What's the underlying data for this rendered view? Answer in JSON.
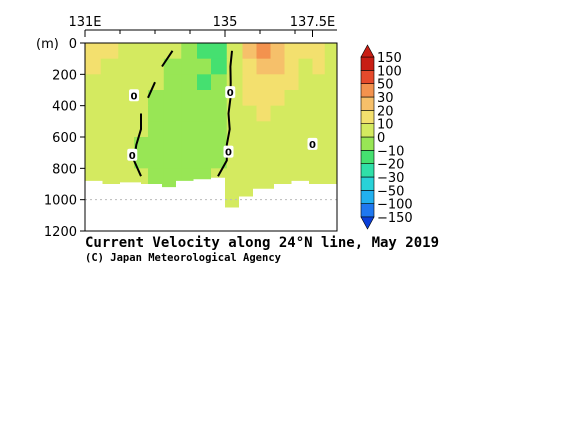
{
  "chart_data": {
    "type": "heatmap",
    "title": "Current Velocity along 24°N line, May 2019",
    "credit": "(C) Japan Meteorological Agency",
    "y_unit_label": "(m)",
    "x_ticks": [
      {
        "value": 131,
        "label": "131E"
      },
      {
        "value": 135,
        "label": "135"
      },
      {
        "value": 137.5,
        "label": "137.5E"
      }
    ],
    "x_minor_ticks": [
      132,
      133,
      134,
      136,
      137
    ],
    "xlim": [
      131,
      138.2
    ],
    "y_ticks": [
      0,
      200,
      400,
      600,
      800,
      1000,
      1200
    ],
    "ylim": [
      0,
      1200
    ],
    "y_inverted": true,
    "colorbar": {
      "levels": [
        -150,
        -100,
        -50,
        -30,
        -20,
        -10,
        0,
        10,
        20,
        30,
        50,
        100,
        150
      ],
      "colors": [
        "#0a3fd8",
        "#1f78f0",
        "#22b0ef",
        "#28d2d8",
        "#2fdfa8",
        "#45e070",
        "#98e655",
        "#d4ea60",
        "#f3e06e",
        "#f6c06a",
        "#f3924e",
        "#e64a2c",
        "#c81e14"
      ],
      "extend": "both"
    },
    "zero_labels": [
      {
        "x": 132.35,
        "depth": 720,
        "text": "0"
      },
      {
        "x": 132.4,
        "depth": 340,
        "text": "0"
      },
      {
        "x": 135.15,
        "depth": 320,
        "text": "0"
      },
      {
        "x": 135.1,
        "depth": 700,
        "text": "0"
      },
      {
        "x": 137.5,
        "depth": 650,
        "text": "0"
      }
    ],
    "velocity_field": {
      "x": [
        131.2,
        131.7,
        132.2,
        132.6,
        133.0,
        133.5,
        134.0,
        134.4,
        134.8,
        135.3,
        135.7,
        136.1,
        136.5,
        136.9,
        137.3,
        137.7,
        138.0
      ],
      "depth": [
        50,
        150,
        250,
        350,
        450,
        550,
        650,
        750,
        850
      ],
      "values": [
        [
          15,
          12,
          8,
          6,
          5,
          0,
          -5,
          -12,
          -20,
          5,
          20,
          35,
          25,
          15,
          10,
          12,
          8
        ],
        [
          10,
          8,
          6,
          5,
          2,
          -3,
          -8,
          -10,
          -12,
          5,
          15,
          25,
          20,
          12,
          8,
          10,
          6
        ],
        [
          8,
          6,
          5,
          3,
          0,
          -5,
          -10,
          -12,
          -8,
          3,
          12,
          18,
          15,
          10,
          6,
          8,
          5
        ],
        [
          6,
          5,
          3,
          2,
          -2,
          -6,
          -10,
          -8,
          -5,
          2,
          10,
          12,
          10,
          8,
          5,
          6,
          4
        ],
        [
          5,
          4,
          3,
          0,
          -3,
          -6,
          -8,
          -6,
          -3,
          2,
          8,
          10,
          8,
          6,
          4,
          5,
          3
        ],
        [
          4,
          3,
          2,
          0,
          -3,
          -5,
          -6,
          -4,
          -2,
          1,
          6,
          8,
          6,
          5,
          3,
          4,
          2
        ],
        [
          3,
          2,
          2,
          -1,
          -2,
          -4,
          -4,
          -3,
          -1,
          1,
          4,
          5,
          4,
          3,
          2,
          3,
          2
        ],
        [
          2,
          2,
          1,
          -1,
          -2,
          -3,
          -3,
          -2,
          -1,
          1,
          3,
          4,
          3,
          2,
          2,
          2,
          1
        ],
        [
          2,
          1,
          1,
          0,
          -1,
          -2,
          -2,
          -1,
          0,
          1,
          2,
          3,
          2,
          2,
          1,
          1,
          1
        ]
      ]
    },
    "bottom_depth": [
      {
        "x": 131.0,
        "depth": 880
      },
      {
        "x": 131.5,
        "depth": 900
      },
      {
        "x": 132.0,
        "depth": 890
      },
      {
        "x": 132.6,
        "depth": 900
      },
      {
        "x": 133.2,
        "depth": 920
      },
      {
        "x": 133.6,
        "depth": 880
      },
      {
        "x": 134.1,
        "depth": 870
      },
      {
        "x": 134.6,
        "depth": 860
      },
      {
        "x": 135.0,
        "depth": 1050
      },
      {
        "x": 135.4,
        "depth": 980
      },
      {
        "x": 135.8,
        "depth": 930
      },
      {
        "x": 136.4,
        "depth": 900
      },
      {
        "x": 136.9,
        "depth": 880
      },
      {
        "x": 137.4,
        "depth": 900
      },
      {
        "x": 138.2,
        "depth": 900
      }
    ]
  }
}
